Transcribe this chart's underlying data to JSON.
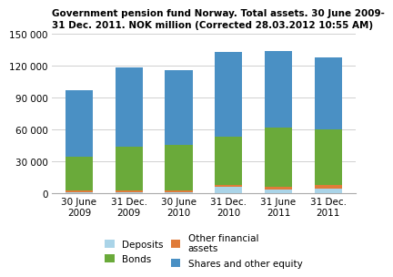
{
  "title": "Government pension fund Norway. Total assets. 30 June 2009-\n31 Dec. 2011. NOK million (Corrected 28.03.2012 10:55 AM)",
  "categories": [
    "30 June\n2009",
    "31 Dec.\n2009",
    "30 June\n2010",
    "31 Dec.\n2010",
    "31 June\n2011",
    "31 Dec.\n2011"
  ],
  "deposits": [
    1500,
    1500,
    1200,
    6000,
    3500,
    5000
  ],
  "other_financial": [
    1500,
    1800,
    1500,
    2500,
    3000,
    3500
  ],
  "bonds": [
    32000,
    41000,
    43000,
    45000,
    56000,
    52000
  ],
  "shares_equity": [
    62000,
    74000,
    70000,
    80000,
    72000,
    68000
  ],
  "colors": {
    "deposits": "#aad4e8",
    "other_financial": "#e07b39",
    "bonds": "#6aaa3a",
    "shares_equity": "#4a90c4"
  },
  "ylim": [
    0,
    150000
  ],
  "yticks": [
    0,
    30000,
    60000,
    90000,
    120000,
    150000
  ],
  "ytick_labels": [
    "0",
    "30 000",
    "60 000",
    "90 000",
    "120 000",
    "150 000"
  ],
  "legend_labels": [
    "Deposits",
    "Bonds",
    "Other financial\nassets",
    "Shares and other equity"
  ],
  "title_fontsize": 7.5,
  "tick_fontsize": 7.5,
  "legend_fontsize": 7.5,
  "bar_width": 0.55,
  "grid_color": "#d0d0d0",
  "background_color": "#ffffff"
}
